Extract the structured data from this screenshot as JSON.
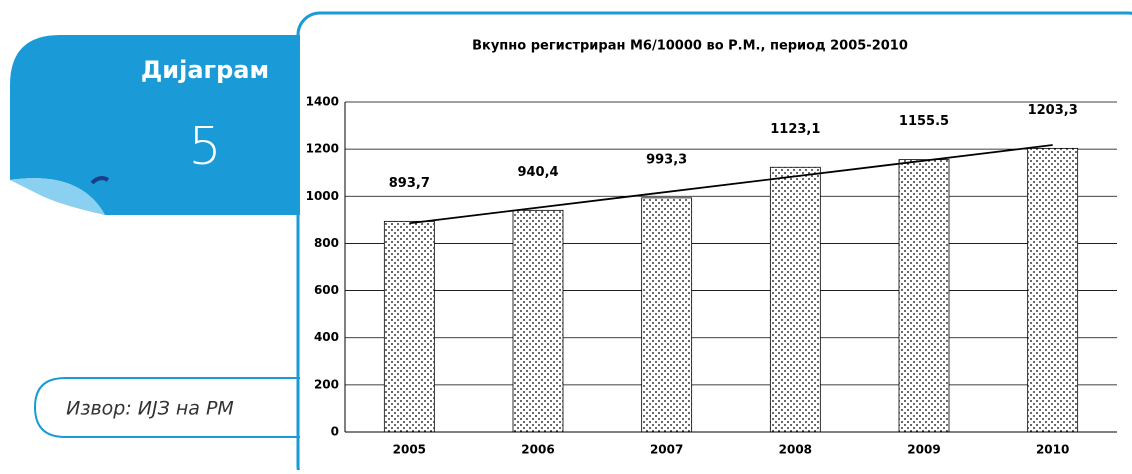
{
  "panel": {
    "label": "Дијаграм",
    "number": 5
  },
  "source": "Извор: ИЈЗ на РМ",
  "chart_data": {
    "type": "bar",
    "title": "Вкупно регистриран М6/10000 во Р.М., период 2005-2010",
    "categories": [
      "2005",
      "2006",
      "2007",
      "2008",
      "2009",
      "2010"
    ],
    "values": [
      893.7,
      940.4,
      993.3,
      1123.1,
      1155.5,
      1203.3
    ],
    "value_labels": [
      "893,7",
      "940,4",
      "993,3",
      "1123,1",
      "1155.5",
      "1203,3"
    ],
    "color": "#000000",
    "trendline": true,
    "ylim": [
      0,
      1400
    ],
    "yticks": [
      0,
      200,
      400,
      600,
      800,
      1000,
      1200,
      1400
    ],
    "grid": true
  }
}
